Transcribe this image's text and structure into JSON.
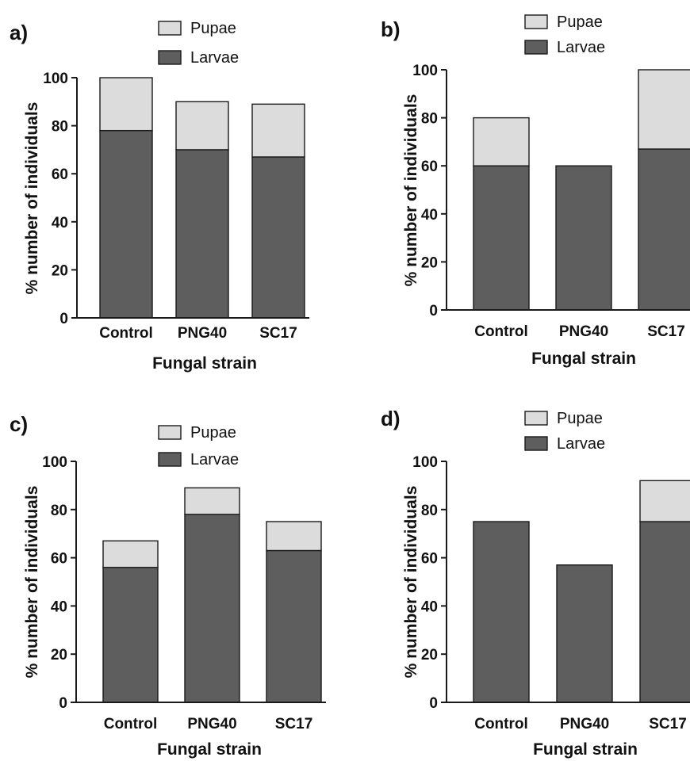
{
  "colors": {
    "larvae": "#5e5e5e",
    "pupae": "#dcdcdc",
    "stroke": "#1a1a1a"
  },
  "chart_data": [
    {
      "type": "bar",
      "stacked": true,
      "panel_label": "a)",
      "categories": [
        "Control",
        "PNG40",
        "SC17"
      ],
      "series": [
        {
          "name": "Larvae",
          "values": [
            78,
            70,
            67
          ]
        },
        {
          "name": "Pupae",
          "values": [
            22,
            20,
            22
          ]
        }
      ],
      "legend": [
        "Pupae",
        "Larvae"
      ],
      "xlabel": "Fungal strain",
      "ylabel": "% number of individuals",
      "ylim": [
        0,
        100
      ],
      "yticks": [
        0,
        20,
        40,
        60,
        80,
        100
      ]
    },
    {
      "type": "bar",
      "stacked": true,
      "panel_label": "b)",
      "categories": [
        "Control",
        "PNG40",
        "SC17"
      ],
      "series": [
        {
          "name": "Larvae",
          "values": [
            60,
            60,
            67
          ]
        },
        {
          "name": "Pupae",
          "values": [
            20,
            0,
            33
          ]
        }
      ],
      "legend": [
        "Pupae",
        "Larvae"
      ],
      "xlabel": "Fungal strain",
      "ylabel": "% number of individuals",
      "ylim": [
        0,
        100
      ],
      "yticks": [
        0,
        20,
        40,
        60,
        80,
        100
      ]
    },
    {
      "type": "bar",
      "stacked": true,
      "panel_label": "c)",
      "categories": [
        "Control",
        "PNG40",
        "SC17"
      ],
      "series": [
        {
          "name": "Larvae",
          "values": [
            56,
            78,
            63
          ]
        },
        {
          "name": "Pupae",
          "values": [
            11,
            11,
            12
          ]
        }
      ],
      "legend": [
        "Pupae",
        "Larvae"
      ],
      "xlabel": "Fungal strain",
      "ylabel": "% number of individuals",
      "ylim": [
        0,
        100
      ],
      "yticks": [
        0,
        20,
        40,
        60,
        80,
        100
      ]
    },
    {
      "type": "bar",
      "stacked": true,
      "panel_label": "d)",
      "categories": [
        "Control",
        "PNG40",
        "SC17"
      ],
      "series": [
        {
          "name": "Larvae",
          "values": [
            75,
            57,
            75
          ]
        },
        {
          "name": "Pupae",
          "values": [
            0,
            0,
            17
          ]
        }
      ],
      "legend": [
        "Pupae",
        "Larvae"
      ],
      "xlabel": "Fungal strain",
      "ylabel": "% number of individuals",
      "ylim": [
        0,
        100
      ],
      "yticks": [
        0,
        20,
        40,
        60,
        80,
        100
      ]
    }
  ]
}
